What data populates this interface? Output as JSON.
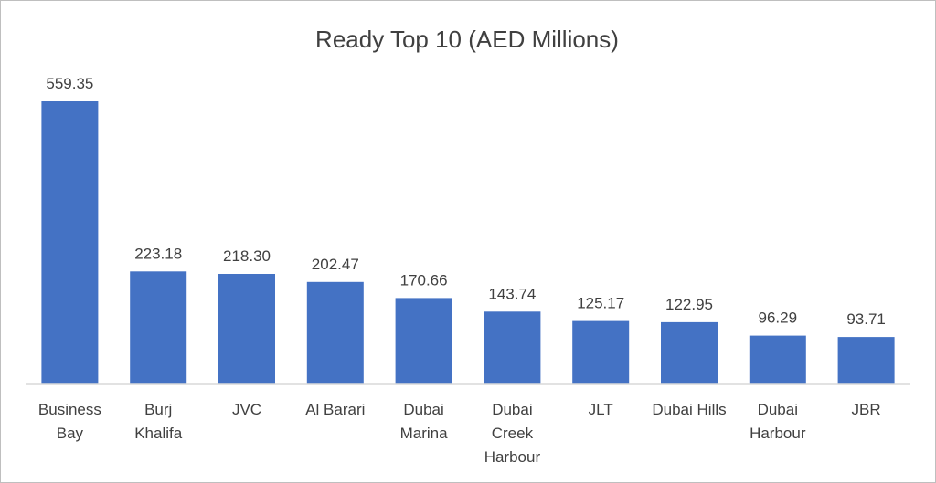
{
  "chart_data": {
    "type": "bar",
    "title": "Ready Top 10 (AED Millions)",
    "xlabel": "",
    "ylabel": "",
    "categories": [
      "Business Bay",
      "Burj Khalifa",
      "JVC",
      "Al Barari",
      "Dubai Marina",
      "Dubai Creek Harbour",
      "JLT",
      "Dubai Hills",
      "Dubai Harbour",
      "JBR"
    ],
    "category_lines": [
      [
        "Business",
        "Bay"
      ],
      [
        "Burj",
        "Khalifa"
      ],
      [
        "JVC"
      ],
      [
        "Al Barari"
      ],
      [
        "Dubai",
        "Marina"
      ],
      [
        "Dubai",
        "Creek",
        "Harbour"
      ],
      [
        "JLT"
      ],
      [
        "Dubai Hills"
      ],
      [
        "Dubai",
        "Harbour"
      ],
      [
        "JBR"
      ]
    ],
    "values": [
      559.35,
      223.18,
      218.3,
      202.47,
      170.66,
      143.74,
      125.17,
      122.95,
      96.29,
      93.71
    ],
    "value_labels": [
      "559.35",
      "223.18",
      "218.30",
      "202.47",
      "170.66",
      "143.74",
      "125.17",
      "122.95",
      "96.29",
      "93.71"
    ],
    "ylim": [
      0,
      559.35
    ],
    "bar_color": "#4472c4",
    "axis_color": "#d9d9d9",
    "grid": false,
    "legend": "none"
  }
}
